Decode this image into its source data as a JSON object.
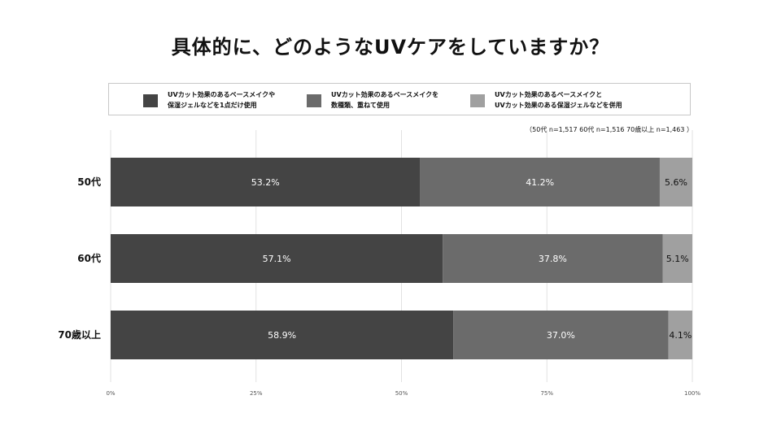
{
  "title": "具体的に、どのようなUVケアをしていますか？",
  "note": "（50代 n=1,517  60代 n=1,516  70歳以上 n=1,463  ）",
  "legend": [
    {
      "line1": "UVカット効果のあるベースメイクや",
      "line2": "保湿ジェルなどを1点だけ使用",
      "color": "#444444"
    },
    {
      "line1": "UVカット効果のあるベースメイクを",
      "line2": "数種類、重ねて使用",
      "color": "#6b6b6b"
    },
    {
      "line1": "UVカット効果のあるベースメイクと",
      "line2": "UVカット効果のある保湿ジェルなどを併用",
      "color": "#a0a0a0"
    }
  ],
  "chart_data": {
    "type": "bar",
    "orientation": "horizontal",
    "stacked": true,
    "categories": [
      "50代",
      "60代",
      "70歳以上"
    ],
    "series": [
      {
        "name": "UVカット効果のあるベースメイクや保湿ジェルなどを1点だけ使用",
        "values": [
          53.2,
          57.1,
          58.9
        ],
        "labels": [
          "53.2%",
          "57.1%",
          "58.9%"
        ],
        "color": "#444444",
        "label_color": "#ffffff"
      },
      {
        "name": "UVカット効果のあるベースメイクを数種類、重ねて使用",
        "values": [
          41.2,
          37.8,
          37.0
        ],
        "labels": [
          "41.2%",
          "37.8%",
          "37.0%"
        ],
        "color": "#6b6b6b",
        "label_color": "#ffffff"
      },
      {
        "name": "UVカット効果のあるベースメイクとUVカット効果のある保湿ジェルなどを併用",
        "values": [
          5.6,
          5.1,
          4.1
        ],
        "labels": [
          "5.6%",
          "5.1%",
          "4.1%"
        ],
        "color": "#a0a0a0",
        "label_color": "#111111"
      }
    ],
    "xlim": [
      0,
      100
    ],
    "xticks": [
      0,
      25,
      50,
      75,
      100
    ],
    "xtick_labels": [
      "0%",
      "25%",
      "50%",
      "75%",
      "100%"
    ],
    "grid": true,
    "legend_position": "top"
  }
}
